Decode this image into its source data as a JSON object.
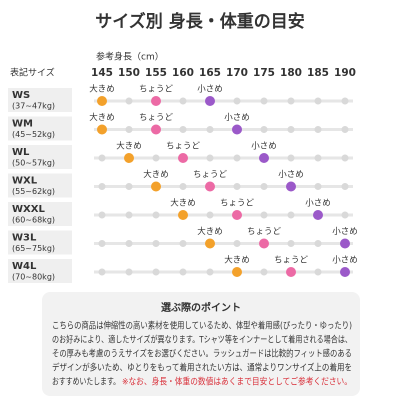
{
  "chart_data": {
    "type": "range-dots",
    "title": "サイズ別 身長・体重の目安",
    "xlabel": "参考身長（cm）",
    "category_header": "表記サイズ",
    "categories": [
      "WS",
      "WM",
      "WL",
      "WXL",
      "WXXL",
      "W3L",
      "W4L"
    ],
    "category_sublabels": [
      "(37~47kg)",
      "(45~52kg)",
      "(50~57kg)",
      "(55~62kg)",
      "(60~68kg)",
      "(65~75kg)",
      "(70~80kg)"
    ],
    "xlim": [
      145,
      190
    ],
    "xticks": [
      145,
      150,
      155,
      160,
      165,
      170,
      175,
      180,
      185,
      190
    ],
    "series": [
      {
        "name": "大きめ",
        "color": "#f3a12b",
        "values": [
          145,
          145,
          150,
          155,
          160,
          165,
          170
        ]
      },
      {
        "name": "ちょうど",
        "color": "#ec6aa5",
        "values": [
          155,
          155,
          160,
          165,
          170,
          175,
          180
        ]
      },
      {
        "name": "小さめ",
        "color": "#9b59c9",
        "values": [
          165,
          170,
          175,
          180,
          185,
          190,
          190
        ]
      }
    ]
  },
  "notes": {
    "title": "選ぶ際のポイント",
    "lines": [
      "こちらの商品は伸縮性の高い素材を使用しているため、体型や着用感(ぴったり・ゆったり)",
      "のお好みにより、適したサイズが異なります。Tシャツ等をインナーとして着用される場合は、",
      "その厚みも考慮のうえサイズをお選びください。ラッシュガードは比較的フィット感のある",
      "デザインが多いため、ゆとりをもって着用されたい方は、通常よりワンサイズ上の着用を",
      "おすすめいたします。"
    ],
    "caution": "※なお、身長・体重の数値はあくまで目安としてご参考ください。"
  }
}
